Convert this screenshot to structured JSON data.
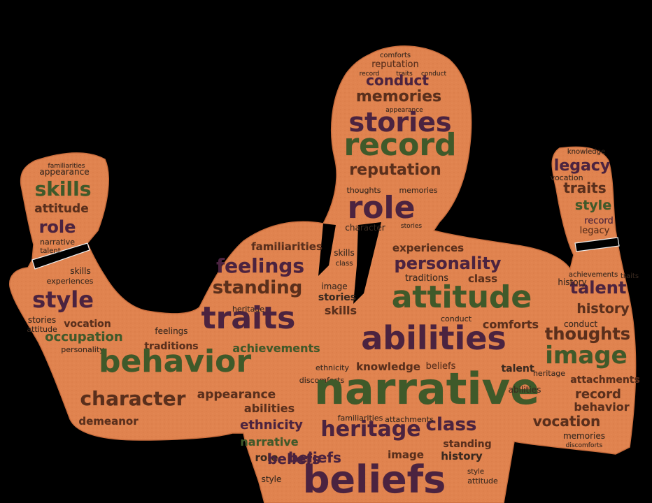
{
  "colors": {
    "background": "#000000",
    "silhouette": "#e0834f",
    "silhouette_edge": "#c96d3d",
    "word_green": "#3f5a2a",
    "word_purple": "#4b2340",
    "word_brown": "#5a2f1c",
    "word_small": "#3a2a20"
  },
  "words": {
    "head": [
      "comforts",
      "reputation",
      "record",
      "traits",
      "conduct",
      "conduct",
      "memories",
      "appearance",
      "stories",
      "record",
      "reputation",
      "thoughts",
      "memories",
      "role",
      "character",
      "stories"
    ],
    "left_arm": [
      "familiarities",
      "appearance",
      "skills",
      "attitude",
      "role",
      "narrative",
      "talent"
    ],
    "right_arm": [
      "knowledge",
      "legacy",
      "vocation",
      "traits",
      "style",
      "record",
      "legacy"
    ],
    "left_body": [
      "skills",
      "experiences",
      "style",
      "stories",
      "attitude",
      "vocation",
      "occupation",
      "personality"
    ],
    "torso": [
      "familiarities",
      "feelings",
      "standing",
      "heritage",
      "traits",
      "feelings",
      "traditions",
      "achievements",
      "behavior",
      "character",
      "appearance",
      "abilities",
      "demeanor",
      "ethnicity",
      "narrative",
      "role",
      "beliefs",
      "style"
    ],
    "center": [
      "skills",
      "class",
      "image",
      "stories",
      "skills",
      "personality",
      "experiences",
      "traditions",
      "class",
      "attitude",
      "abilities",
      "comforts",
      "conduct",
      "ethnicity",
      "discomforts",
      "knowledge",
      "beliefs",
      "narrative",
      "heritage",
      "class",
      "familiarities",
      "attachments",
      "image",
      "beliefs",
      "standing",
      "history",
      "beliefs",
      "style",
      "attitude"
    ],
    "right_body": [
      "talent",
      "history",
      "conduct",
      "thoughts",
      "image",
      "talent",
      "heritage",
      "attachments",
      "record",
      "behavior",
      "vocation",
      "memories",
      "discomforts",
      "achievements",
      "traits",
      "history",
      "abilities"
    ]
  }
}
